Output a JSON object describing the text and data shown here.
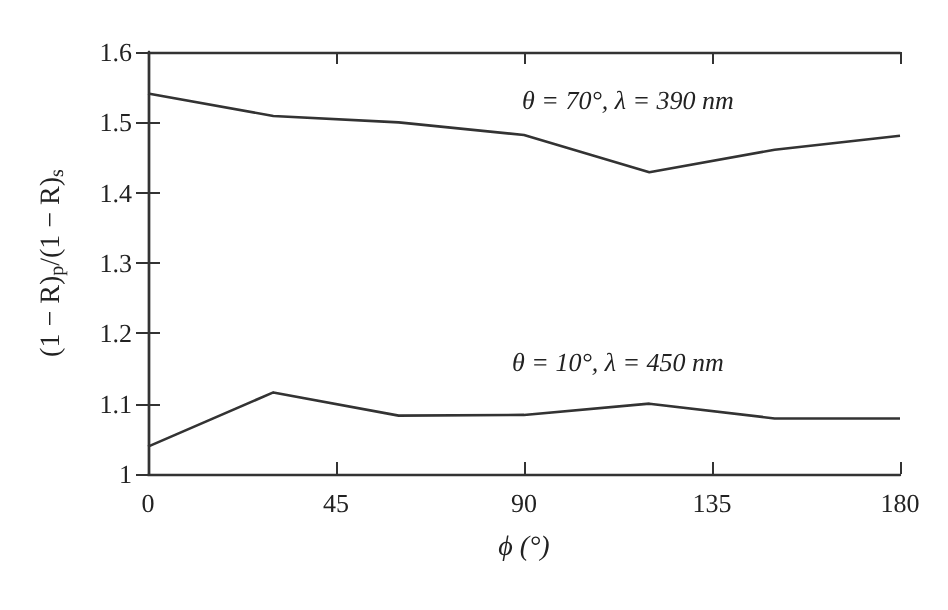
{
  "chart_data": {
    "type": "line",
    "xlabel": "ϕ (°)",
    "ylabel": "(1 − R)$_{p}$/(1 − R)$_{s}$",
    "x": [
      0,
      30,
      60,
      90,
      120,
      150,
      180
    ],
    "series": [
      {
        "color": "#333333",
        "values": [
          1.541,
          1.509,
          1.5,
          1.482,
          1.429,
          1.461,
          1.481
        ]
      },
      {
        "color": "#333333",
        "values": [
          1.039,
          1.116,
          1.083,
          1.084,
          1.1,
          1.079,
          1.079
        ]
      }
    ],
    "annotations": [
      "θ = 70°, λ = 390 nm",
      "θ = 10°, λ = 450 nm"
    ],
    "xlim": [
      0,
      180
    ],
    "xticks": [
      0,
      45,
      90,
      135,
      180
    ],
    "ylim": [
      1,
      1.6
    ],
    "yticks": [
      1,
      1.1,
      1.2,
      1.3,
      1.4,
      1.5,
      1.6
    ],
    "grid": false,
    "marker": "none",
    "line_style": "solid"
  }
}
